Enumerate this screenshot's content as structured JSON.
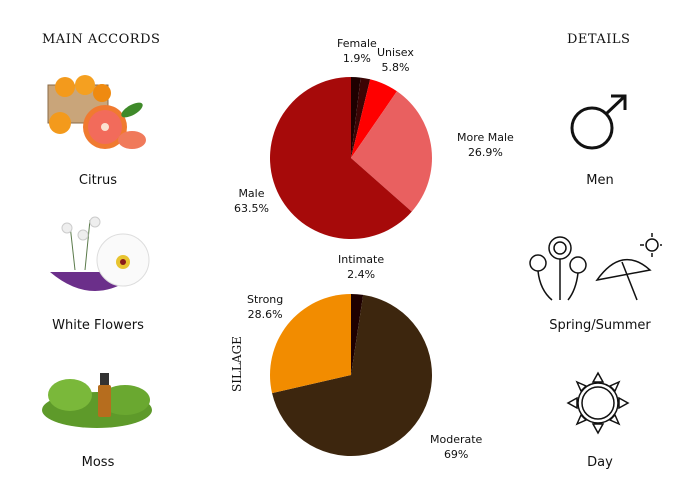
{
  "main_accords": {
    "heading": "MAIN ACCORDS",
    "items": [
      {
        "label": "Citrus",
        "icon": "citrus-fruit-image"
      },
      {
        "label": "White Flowers",
        "icon": "white-flowers-image"
      },
      {
        "label": "Moss",
        "icon": "moss-image"
      }
    ]
  },
  "details": {
    "heading": "DETAILS",
    "items": [
      {
        "label": "Men",
        "icon": "male-symbol-icon"
      },
      {
        "label": "Spring/Summer",
        "icon": "flowers-umbrella-sun-icon"
      },
      {
        "label": "Day",
        "icon": "sun-icon"
      }
    ]
  },
  "chart_data": [
    {
      "type": "pie",
      "title": "",
      "start": "top, clockwise",
      "slices": [
        {
          "label": "Female",
          "value": 1.9,
          "text": "1.9%",
          "color": "#1e0000"
        },
        {
          "label": "",
          "value": 1.9,
          "text": "",
          "color": "#3c0404"
        },
        {
          "label": "Unisex",
          "value": 5.8,
          "text": "5.8%",
          "color": "#ff0000"
        },
        {
          "label": "More Male",
          "value": 26.9,
          "text": "26.9%",
          "color": "#e96060"
        },
        {
          "label": "Male",
          "value": 63.5,
          "text": "63.5%",
          "color": "#a60a0a"
        }
      ]
    },
    {
      "type": "pie",
      "title": "SILLAGE",
      "start": "top, clockwise",
      "slices": [
        {
          "label": "Intimate",
          "value": 2.4,
          "text": "2.4%",
          "color": "#1e0000"
        },
        {
          "label": "Moderate",
          "value": 69,
          "text": "69%",
          "color": "#3d260e"
        },
        {
          "label": "Strong",
          "value": 28.6,
          "text": "28.6%",
          "color": "#f28c00"
        }
      ]
    }
  ]
}
